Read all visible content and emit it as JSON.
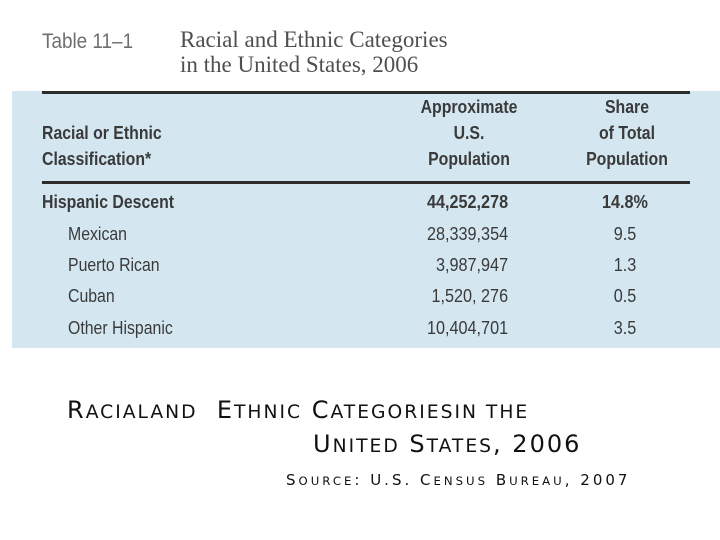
{
  "table": {
    "label": "Table 11–1",
    "title_line1": "Racial and Ethnic Categories",
    "title_line2": "in the United States, 2006",
    "headers": {
      "classification": [
        "Racial or Ethnic",
        "Classification*"
      ],
      "population": [
        "Approximate",
        "U.S.",
        "Population"
      ],
      "share": [
        "Share",
        "of Total",
        "Population"
      ]
    },
    "rows": [
      {
        "name": "Hispanic Descent",
        "population": "44,252,278",
        "share": "14.8%",
        "bold": true
      },
      {
        "name": "Mexican",
        "population": "28,339,354",
        "share": "9.5"
      },
      {
        "name": "Puerto Rican",
        "population": "3,987,947",
        "share": "1.3"
      },
      {
        "name": "Cuban",
        "population": "1,520, 276",
        "share": "0.5"
      },
      {
        "name": "Other Hispanic",
        "population": "10,404,701",
        "share": "3.5"
      }
    ]
  },
  "caption": {
    "line1": {
      "r_cap": "R",
      "r_rest": "ACIAL",
      "and": "AND",
      "e_cap": "E",
      "e_rest": "THNIC",
      "c_cap": "C",
      "c_rest": "ATEGORIES",
      "in": "IN THE"
    },
    "line2": {
      "u_cap": "U",
      "u_rest": "NITED",
      "s_cap": "S",
      "s_rest": "TATES",
      "year": ", 2006"
    },
    "source": {
      "s_cap": "S",
      "s_rest": "OURCE",
      "colon": ": U.S.",
      "c_cap": "C",
      "c_rest": "ENSUS",
      "b_cap": "B",
      "b_rest": "UREAU",
      "year": ", 2007"
    }
  }
}
